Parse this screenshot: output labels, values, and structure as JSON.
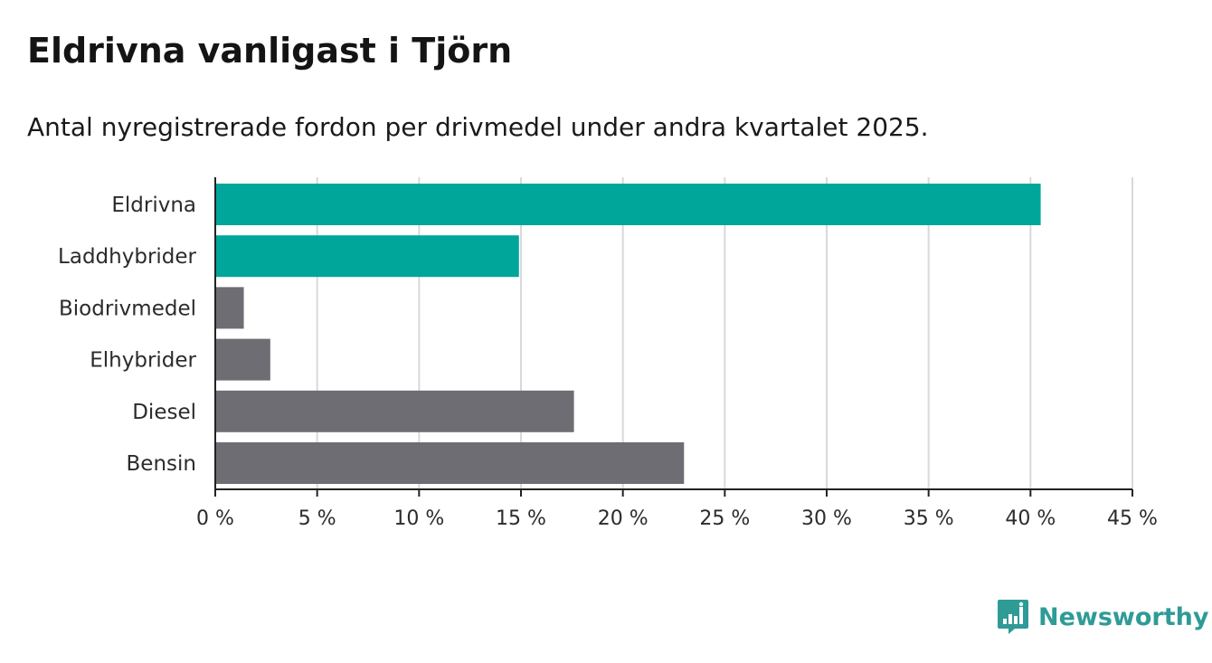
{
  "title": "Eldrivna vanligast i Tjörn",
  "subtitle": "Antal nyregistrerade fordon per drivmedel under andra kvartalet 2025.",
  "brand": {
    "name": "Newsworthy",
    "icon": "newsworthy-logo-icon"
  },
  "colors": {
    "highlight": "#00a69a",
    "neutral": "#6e6d73",
    "grid": "#d9d9d9",
    "axis": "#222222",
    "brand": "#2f9b96"
  },
  "chart_data": {
    "type": "bar",
    "orientation": "horizontal",
    "categories": [
      "Eldrivna",
      "Laddhybrider",
      "Biodrivmedel",
      "Elhybrider",
      "Diesel",
      "Bensin"
    ],
    "values": [
      40.5,
      14.9,
      1.4,
      2.7,
      17.6,
      23.0
    ],
    "highlighted": [
      true,
      true,
      false,
      false,
      false,
      false
    ],
    "xlim": [
      0,
      45
    ],
    "xticks": [
      0,
      5,
      10,
      15,
      20,
      25,
      30,
      35,
      40,
      45
    ],
    "xtick_labels": [
      "0 %",
      "5 %",
      "10 %",
      "15 %",
      "20 %",
      "25 %",
      "30 %",
      "35 %",
      "40 %",
      "45 %"
    ],
    "grid": "vertical",
    "xlabel": "",
    "ylabel": ""
  }
}
